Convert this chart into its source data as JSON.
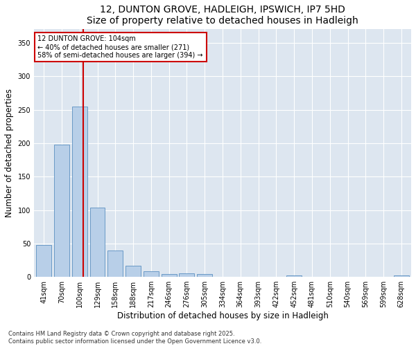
{
  "title": "12, DUNTON GROVE, HADLEIGH, IPSWICH, IP7 5HD",
  "subtitle": "Size of property relative to detached houses in Hadleigh",
  "xlabel": "Distribution of detached houses by size in Hadleigh",
  "ylabel": "Number of detached properties",
  "categories": [
    "41sqm",
    "70sqm",
    "100sqm",
    "129sqm",
    "158sqm",
    "188sqm",
    "217sqm",
    "246sqm",
    "276sqm",
    "305sqm",
    "334sqm",
    "364sqm",
    "393sqm",
    "422sqm",
    "452sqm",
    "481sqm",
    "510sqm",
    "540sqm",
    "569sqm",
    "599sqm",
    "628sqm"
  ],
  "values": [
    48,
    198,
    255,
    104,
    40,
    17,
    9,
    4,
    5,
    4,
    0,
    0,
    0,
    0,
    2,
    0,
    0,
    0,
    0,
    0,
    2
  ],
  "bar_color": "#b8cfe8",
  "bar_edge_color": "#5a8fc0",
  "vline_color": "#cc0000",
  "annotation_box_text": "12 DUNTON GROVE: 104sqm\n← 40% of detached houses are smaller (271)\n58% of semi-detached houses are larger (394) →",
  "annotation_box_color": "#cc0000",
  "background_color": "#dde6f0",
  "ylim": [
    0,
    370
  ],
  "yticks": [
    0,
    50,
    100,
    150,
    200,
    250,
    300,
    350
  ],
  "footnote": "Contains HM Land Registry data © Crown copyright and database right 2025.\nContains public sector information licensed under the Open Government Licence v3.0.",
  "title_fontsize": 10,
  "xlabel_fontsize": 8.5,
  "ylabel_fontsize": 8.5,
  "tick_fontsize": 7,
  "annot_fontsize": 7,
  "footnote_fontsize": 6
}
